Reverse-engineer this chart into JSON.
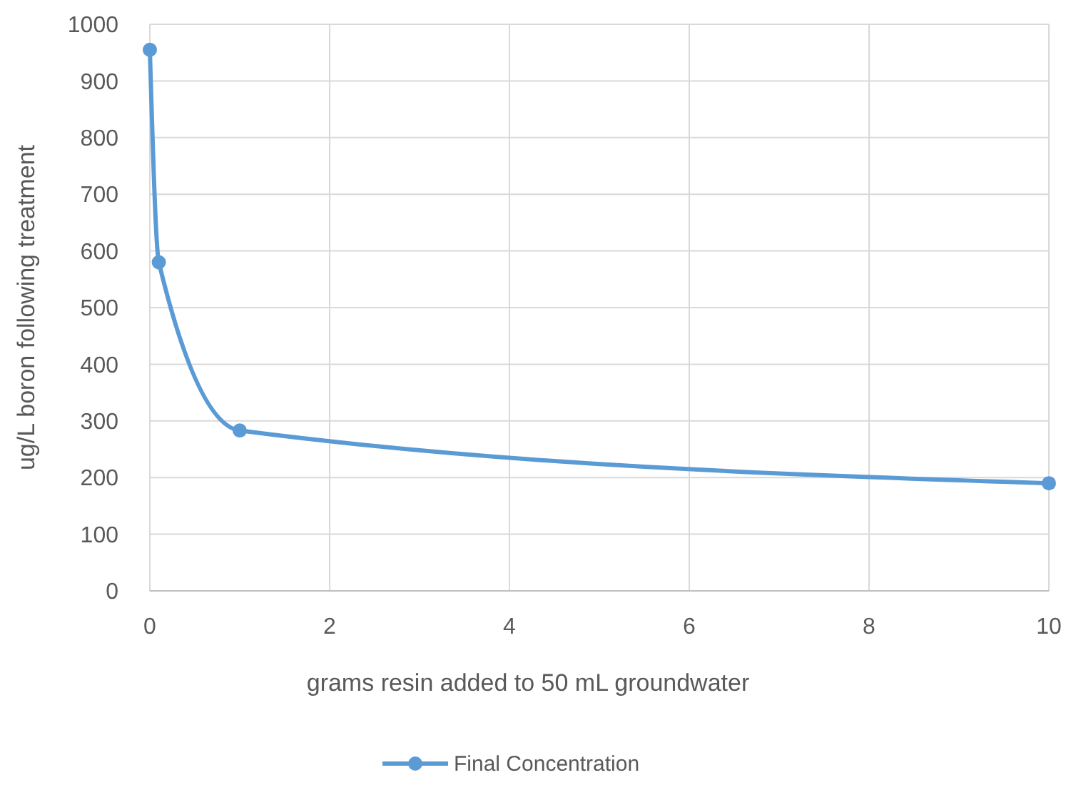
{
  "chart_data": {
    "type": "line",
    "xlabel": "grams resin added to 50 mL  groundwater",
    "ylabel": "ug/L boron following treatment",
    "x": [
      0,
      0.1,
      1,
      10
    ],
    "series": [
      {
        "name": "Final Concentration",
        "color": "#5b9bd5",
        "values": [
          955,
          580,
          283,
          190
        ]
      }
    ],
    "xlim": [
      0,
      10
    ],
    "xticks": [
      0,
      2,
      4,
      6,
      8,
      10
    ],
    "ylim": [
      0,
      1000
    ],
    "yticks": [
      0,
      100,
      200,
      300,
      400,
      500,
      600,
      700,
      800,
      900,
      1000
    ],
    "grid": true,
    "legend": "bottom",
    "marker": "circle",
    "line_style": "solid"
  }
}
